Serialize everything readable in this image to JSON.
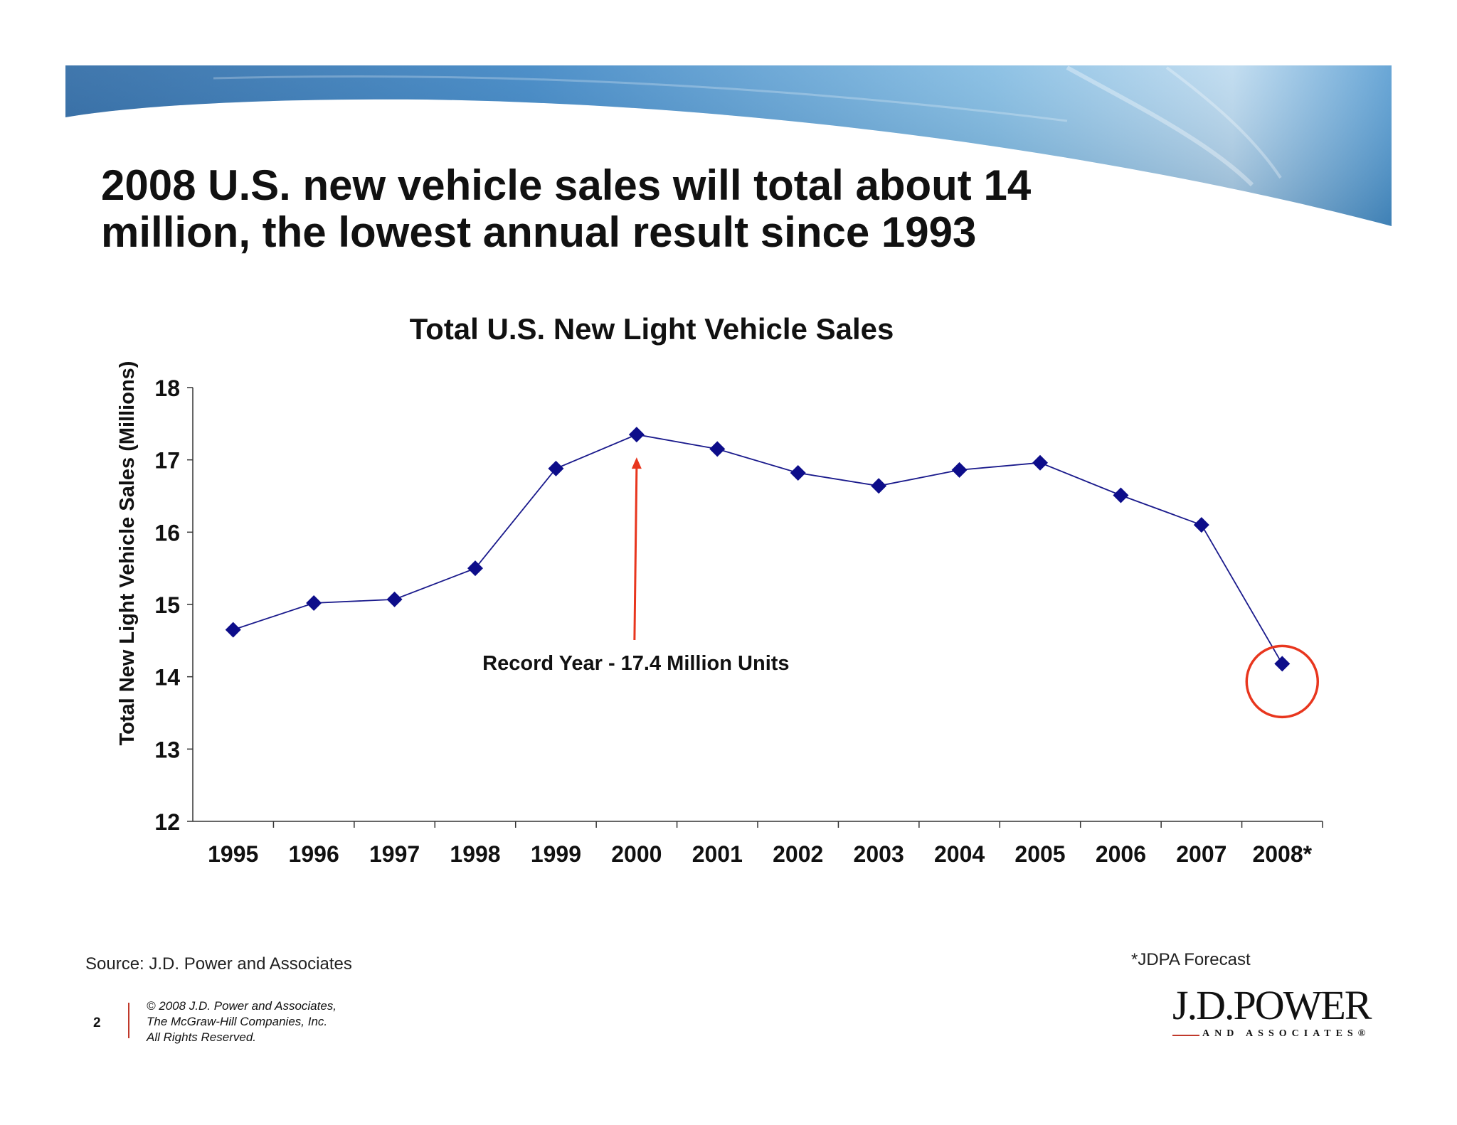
{
  "slide": {
    "headline_line1": "2008 U.S. new vehicle sales will total about 14",
    "headline_line2": "million, the lowest annual result since 1993",
    "source": "Source: J.D. Power and Associates",
    "forecast_note": "*JDPA Forecast",
    "page_number": "2",
    "copyright_line1": "© 2008 J.D. Power and Associates,",
    "copyright_line2": "The McGraw-Hill Companies, Inc.",
    "copyright_line3": "All Rights Reserved.",
    "logo_main": "J.D.POWER",
    "logo_sub": "AND ASSOCIATES®"
  },
  "colors": {
    "series": "#1a1a8c",
    "marker": "#0d0d8a",
    "annotation": "#e8361e",
    "banner_dark": "#1f5f9e",
    "banner_light": "#b9d8ee"
  },
  "chart_data": {
    "type": "line",
    "title": "Total U.S. New Light Vehicle Sales",
    "xlabel": "",
    "ylabel": "Total New Light Vehicle Sales (Millions)",
    "ylim": [
      12,
      18
    ],
    "yticks": [
      "12",
      "13",
      "14",
      "15",
      "16",
      "17",
      "18"
    ],
    "categories": [
      "1995",
      "1996",
      "1997",
      "1998",
      "1999",
      "2000",
      "2001",
      "2002",
      "2003",
      "2004",
      "2005",
      "2006",
      "2007",
      "2008*"
    ],
    "series": [
      {
        "name": "Total U.S. New Light Vehicle Sales",
        "values": [
          14.65,
          15.02,
          15.07,
          15.5,
          16.88,
          17.35,
          17.15,
          16.82,
          16.64,
          16.86,
          16.96,
          16.51,
          16.1,
          14.18
        ]
      }
    ],
    "legend": "none",
    "grid": false,
    "annotations": [
      {
        "text": "Record Year - 17.4 Million Units",
        "target_category": "2000",
        "type": "arrow"
      },
      {
        "text": "",
        "target_category": "2008*",
        "type": "circle"
      }
    ]
  }
}
